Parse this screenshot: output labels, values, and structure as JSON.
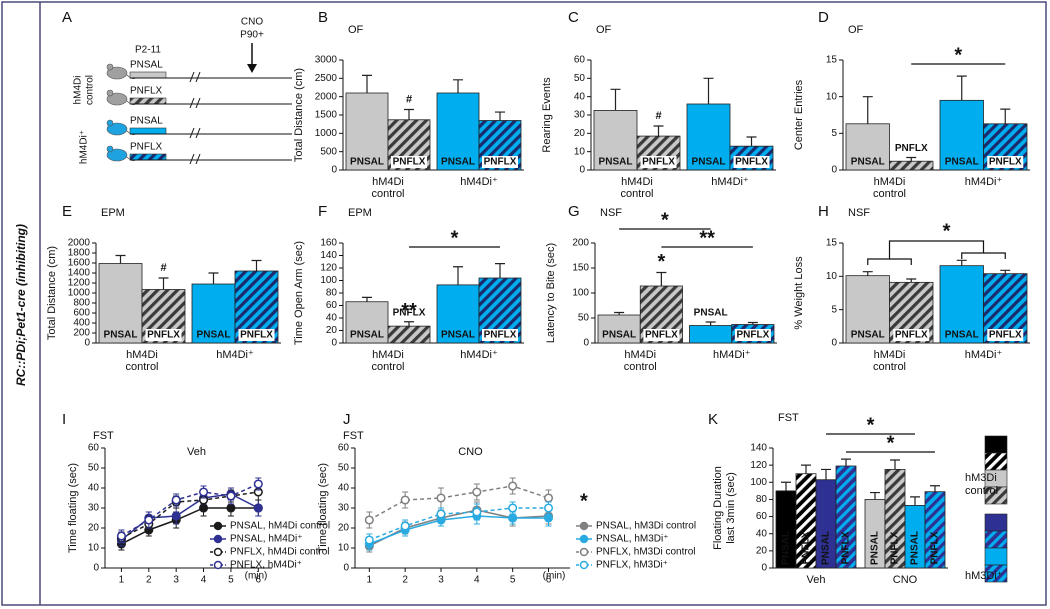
{
  "side_label": "RC::PDi;Pet1-cre (inhibiting)",
  "panel_a": {
    "label": "A",
    "period": "P2-11",
    "treatment": [
      "CNO",
      "P90+"
    ],
    "groups": [
      [
        "hM4Di",
        "control"
      ],
      [
        "hM4Di⁺"
      ]
    ],
    "rows": [
      "PNSAL",
      "PNFLX",
      "PNSAL",
      "PNFLX"
    ]
  },
  "chart_data": [
    {
      "type": "bar",
      "panel": "B",
      "subtitle": "OF",
      "ylabel": "Total Distance (cm)",
      "categories": [
        "PNSAL",
        "PNFLX",
        "PNSAL",
        "PNFLX"
      ],
      "groups": [
        [
          "hM4Di",
          "control"
        ],
        [
          "hM4Di⁺"
        ]
      ],
      "values": [
        2100,
        1370,
        2100,
        1350
      ],
      "errors": [
        480,
        280,
        360,
        230
      ],
      "colors": [
        "#c8c8c8",
        "#c8c8c8",
        "#00aeef",
        "#00aeef"
      ],
      "hatch_colors": [
        null,
        "#3a3a3a",
        null,
        "#1b2a6b"
      ],
      "bar_annotations": [
        null,
        "#",
        null,
        null
      ],
      "comparisons": [],
      "ylim": [
        0,
        3000
      ],
      "yticks": [
        0,
        500,
        1000,
        1500,
        2000,
        2500,
        3000
      ]
    },
    {
      "type": "bar",
      "panel": "C",
      "subtitle": "OF",
      "ylabel": "Rearing Events",
      "categories": [
        "PNSAL",
        "PNFLX",
        "PNSAL",
        "PNFLX"
      ],
      "groups": [
        [
          "hM4Di",
          "control"
        ],
        [
          "hM4Di⁺"
        ]
      ],
      "values": [
        32.5,
        18.5,
        36,
        13
      ],
      "errors": [
        11.5,
        5.5,
        14,
        5
      ],
      "colors": [
        "#c8c8c8",
        "#c8c8c8",
        "#00aeef",
        "#00aeef"
      ],
      "hatch_colors": [
        null,
        "#3a3a3a",
        null,
        "#1b2a6b"
      ],
      "bar_annotations": [
        null,
        "#",
        null,
        null
      ],
      "comparisons": [],
      "ylim": [
        0,
        60
      ],
      "yticks": [
        0,
        10,
        20,
        30,
        40,
        50,
        60
      ]
    },
    {
      "type": "bar",
      "panel": "D",
      "subtitle": "OF",
      "ylabel": "Center Entries",
      "categories": [
        "PNSAL",
        "PNFLX",
        "PNSAL",
        "PNFLX"
      ],
      "groups": [
        [
          "hM4Di",
          "control"
        ],
        [
          "hM4Di⁺"
        ]
      ],
      "values": [
        6.3,
        1.2,
        9.5,
        6.3
      ],
      "errors": [
        3.7,
        0.5,
        3.3,
        2
      ],
      "colors": [
        "#c8c8c8",
        "#c8c8c8",
        "#00aeef",
        "#00aeef"
      ],
      "hatch_colors": [
        null,
        "#3a3a3a",
        null,
        "#1b2a6b"
      ],
      "bar_annotations": [
        null,
        null,
        null,
        null
      ],
      "comparisons": [
        {
          "text": "*",
          "bars": [
            1,
            3
          ]
        }
      ],
      "ylim": [
        0,
        15
      ],
      "yticks": [
        0,
        5,
        10,
        15
      ]
    },
    {
      "type": "bar",
      "panel": "E",
      "subtitle": "EPM",
      "ylabel": "Total Distance (cm)",
      "categories": [
        "PNSAL",
        "PNFLX",
        "PNSAL",
        "PNFLX"
      ],
      "groups": [
        [
          "hM4Di",
          "control"
        ],
        [
          "hM4Di⁺"
        ]
      ],
      "values": [
        1590,
        1070,
        1180,
        1440
      ],
      "errors": [
        160,
        230,
        220,
        210
      ],
      "colors": [
        "#c8c8c8",
        "#c8c8c8",
        "#00aeef",
        "#00aeef"
      ],
      "hatch_colors": [
        null,
        "#3a3a3a",
        null,
        "#1b2a6b"
      ],
      "bar_annotations": [
        null,
        "#",
        null,
        null
      ],
      "comparisons": [],
      "ylim": [
        0,
        2000
      ],
      "yticks": [
        0,
        200,
        400,
        600,
        800,
        1000,
        1200,
        1400,
        1600,
        1800,
        2000
      ]
    },
    {
      "type": "bar",
      "panel": "F",
      "subtitle": "EPM",
      "ylabel": "Time Open Arm (sec)",
      "categories": [
        "PNSAL",
        "PNFLX",
        "PNSAL",
        "PNFLX"
      ],
      "groups": [
        [
          "hM4Di",
          "control"
        ],
        [
          "hM4Di⁺"
        ]
      ],
      "values": [
        66,
        27,
        93,
        104
      ],
      "errors": [
        7,
        7,
        29,
        23
      ],
      "colors": [
        "#c8c8c8",
        "#c8c8c8",
        "#00aeef",
        "#00aeef"
      ],
      "hatch_colors": [
        null,
        "#3a3a3a",
        null,
        "#1b2a6b"
      ],
      "bar_annotations": [
        null,
        "**",
        null,
        null
      ],
      "comparisons": [
        {
          "text": "*",
          "bars": [
            1,
            3
          ]
        }
      ],
      "ylim": [
        0,
        160
      ],
      "yticks": [
        0,
        20,
        40,
        60,
        80,
        100,
        120,
        140,
        160
      ]
    },
    {
      "type": "bar",
      "panel": "G",
      "subtitle": "NSF",
      "ylabel": "Latency to Bite (sec)",
      "categories": [
        "PNSAL",
        "PNFLX",
        "PNSAL",
        "PNFLX"
      ],
      "groups": [
        [
          "hM4Di",
          "control"
        ],
        [
          "hM4Di⁺"
        ]
      ],
      "values": [
        56,
        114,
        35,
        37
      ],
      "errors": [
        5,
        27,
        7,
        4
      ],
      "colors": [
        "#c8c8c8",
        "#c8c8c8",
        "#00aeef",
        "#00aeef"
      ],
      "hatch_colors": [
        null,
        "#3a3a3a",
        null,
        "#1b2a6b"
      ],
      "bar_annotations": [
        null,
        "*",
        null,
        null
      ],
      "comparisons": [
        {
          "text": "*",
          "bars": [
            0,
            2
          ]
        },
        {
          "text": "**",
          "bars": [
            1,
            3
          ]
        }
      ],
      "ylim": [
        0,
        200
      ],
      "yticks": [
        0,
        50,
        100,
        150,
        200
      ]
    },
    {
      "type": "bar",
      "panel": "H",
      "subtitle": "NSF",
      "ylabel": "% Weight Loss",
      "categories": [
        "PNSAL",
        "PNFLX",
        "PNSAL",
        "PNFLX"
      ],
      "groups": [
        [
          "hM4Di",
          "control"
        ],
        [
          "hM4Di⁺"
        ]
      ],
      "values": [
        10.1,
        9.1,
        11.6,
        10.4
      ],
      "errors": [
        0.6,
        0.5,
        0.8,
        0.5
      ],
      "colors": [
        "#c8c8c8",
        "#c8c8c8",
        "#00aeef",
        "#00aeef"
      ],
      "hatch_colors": [
        null,
        "#3a3a3a",
        null,
        "#1b2a6b"
      ],
      "bar_annotations": [
        null,
        null,
        null,
        null
      ],
      "comparisons": [
        {
          "text": "*",
          "groups": [
            0,
            1
          ]
        }
      ],
      "ylim": [
        0,
        15
      ],
      "yticks": [
        0,
        5,
        10,
        15
      ]
    },
    {
      "type": "line",
      "panel": "I",
      "subtitle": "FST",
      "title": "Veh",
      "ylabel": "Time floating (sec)",
      "xlabel": "(min)",
      "x": [
        1,
        2,
        3,
        4,
        5,
        6
      ],
      "xlim": [
        0.4,
        6.5
      ],
      "xticks": [
        1,
        2,
        3,
        4,
        5,
        6
      ],
      "ylim": [
        0,
        60
      ],
      "yticks": [
        0,
        10,
        20,
        30,
        40,
        50,
        60
      ],
      "series": [
        {
          "name": "PNSAL, hM4Di control",
          "color": "#1a1a1a",
          "filled": true,
          "dashed": false,
          "values": [
            12,
            19,
            24,
            30,
            30,
            30
          ],
          "errors": [
            3,
            3,
            4,
            4,
            4,
            4
          ]
        },
        {
          "name": "PNSAL, hM4Di⁺",
          "color": "#2e3192",
          "filled": true,
          "dashed": false,
          "values": [
            14,
            25,
            26,
            35,
            37,
            30
          ],
          "errors": [
            3,
            3,
            4,
            3,
            3,
            4
          ]
        },
        {
          "name": "PNFLX, hM4Di control",
          "color": "#1a1a1a",
          "filled": false,
          "dashed": true,
          "values": [
            15,
            22,
            33,
            34,
            36,
            38
          ],
          "errors": [
            3,
            4,
            3,
            4,
            3,
            4
          ]
        },
        {
          "name": "PNFLX, hM4Di⁺",
          "color": "#2e3192",
          "filled": false,
          "dashed": true,
          "values": [
            16,
            24,
            34,
            38,
            36,
            42
          ],
          "errors": [
            3,
            4,
            3,
            3,
            4,
            3
          ]
        }
      ]
    },
    {
      "type": "line",
      "panel": "J",
      "subtitle": "FST",
      "title": "CNO",
      "ylabel": "Time floating (sec)",
      "xlabel": "(min)",
      "x": [
        1,
        2,
        3,
        4,
        5,
        6
      ],
      "xlim": [
        0.6,
        6.6
      ],
      "xticks": [
        1,
        2,
        3,
        4,
        5,
        6
      ],
      "ylim": [
        0,
        60
      ],
      "yticks": [
        0,
        10,
        20,
        30,
        40,
        50,
        60
      ],
      "annotation": "*",
      "annotation_color": "#29abe2",
      "series": [
        {
          "name": "PNSAL, hM3Di control",
          "color": "#808080",
          "filled": true,
          "dashed": false,
          "values": [
            11,
            20,
            25,
            29,
            25,
            26
          ],
          "errors": [
            3,
            3,
            4,
            4,
            4,
            4
          ]
        },
        {
          "name": "PNSAL, hM3Di⁺",
          "color": "#29abe2",
          "filled": true,
          "dashed": false,
          "values": [
            12,
            19,
            24,
            26,
            25,
            25
          ],
          "errors": [
            3,
            3,
            3,
            4,
            3,
            4
          ]
        },
        {
          "name": "PNFLX, hM3Di control",
          "color": "#808080",
          "filled": false,
          "dashed": true,
          "values": [
            24,
            34,
            35,
            38,
            41,
            35
          ],
          "errors": [
            4,
            4,
            5,
            4,
            4,
            4
          ]
        },
        {
          "name": "PNFLX, hM3Di⁺",
          "color": "#29abe2",
          "filled": false,
          "dashed": true,
          "values": [
            14,
            21,
            27,
            28,
            30,
            30
          ],
          "errors": [
            3,
            3,
            3,
            4,
            3,
            3
          ]
        }
      ]
    },
    {
      "type": "bar",
      "panel": "K",
      "subtitle": "FST",
      "ylabel": [
        "Floating Duration",
        "last 3min (sec)"
      ],
      "categories": [
        "PNSAL",
        "PNFLX",
        "PNSAL",
        "PNFLX",
        "PNSAL",
        "PNFLX",
        "PNSAL",
        "PNFLX"
      ],
      "groups": [
        [
          "Veh"
        ],
        [
          "CNO"
        ]
      ],
      "values": [
        90,
        110,
        103,
        119,
        80,
        115,
        73,
        89
      ],
      "errors": [
        10,
        10,
        12,
        8,
        8,
        11,
        10,
        7
      ],
      "colors": [
        "#000000",
        "#000000",
        "#2e3192",
        "#2e3192",
        "#c8c8c8",
        "#c8c8c8",
        "#00aeef",
        "#00aeef"
      ],
      "hatch_colors": [
        null,
        "#ffffff",
        null,
        "#00aeef",
        null,
        "#3a3a3a",
        null,
        "#2e3192"
      ],
      "bar_annotations": [
        null,
        null,
        null,
        null,
        null,
        null,
        null,
        null
      ],
      "comparisons": [
        {
          "text": "*",
          "bars": [
            2,
            6
          ]
        },
        {
          "text": "*",
          "bars": [
            3,
            7
          ]
        }
      ],
      "legend": [
        [
          "hM3Di",
          "control"
        ],
        [
          "hM3Di⁺"
        ]
      ],
      "ylim": [
        0,
        140
      ],
      "yticks": [
        0,
        20,
        40,
        60,
        80,
        100,
        120,
        140
      ]
    }
  ]
}
